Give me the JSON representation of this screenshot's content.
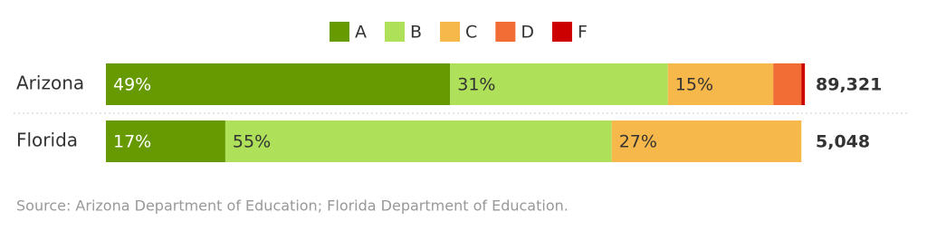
{
  "chart_data": {
    "type": "stacked-bar",
    "categories": [
      "Arizona",
      "Florida"
    ],
    "xlim": [
      0,
      100
    ],
    "series": [
      {
        "name": "A",
        "color": "#669a00",
        "values": [
          49,
          17
        ],
        "value_labels": [
          "49%",
          "17%"
        ]
      },
      {
        "name": "B",
        "color": "#aee05a",
        "values": [
          31,
          55
        ],
        "value_labels": [
          "31%",
          "55%"
        ]
      },
      {
        "name": "C",
        "color": "#f7b84b",
        "values": [
          15,
          27
        ],
        "value_labels": [
          "15%",
          "27%"
        ]
      },
      {
        "name": "D",
        "color": "#f26d35",
        "values": [
          4,
          0
        ],
        "value_labels": [
          null,
          null
        ]
      },
      {
        "name": "F",
        "color": "#cc0000",
        "values": [
          0.5,
          0
        ],
        "value_labels": [
          null,
          null
        ]
      }
    ],
    "totals": [
      {
        "value": 89321,
        "label": "89,321"
      },
      {
        "value": 5048,
        "label": "5,048"
      }
    ],
    "source": "Source: Arizona Department of Education; Florida Department of Education."
  }
}
